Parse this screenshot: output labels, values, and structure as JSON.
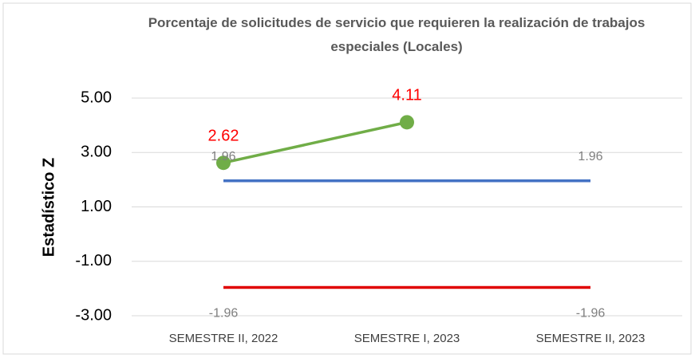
{
  "chart_data": {
    "type": "line",
    "title": "Porcentaje de solicitudes de servicio que requieren la realización de trabajos especiales (Locales)",
    "ylabel": "Estadístico Z",
    "categories": [
      "SEMESTRE II, 2022",
      "SEMESTRE I, 2023",
      "SEMESTRE II, 2023"
    ],
    "series": [
      {
        "name": "Estadístico Z",
        "color": "#70ad47",
        "values": [
          2.62,
          4.11,
          null
        ],
        "value_labels": [
          "2.62",
          "4.11",
          null
        ],
        "markers": true,
        "label_color": "#ff0000",
        "label_position": "above"
      },
      {
        "name": "1.96",
        "color": "#4472c4",
        "values": [
          1.96,
          1.96,
          1.96
        ],
        "value_labels": [
          "1.96",
          null,
          "1.96"
        ],
        "markers": false,
        "label_color": "#7f7f7f",
        "label_position": "above"
      },
      {
        "name": "-1.96",
        "color": "#e00000",
        "values": [
          -1.96,
          -1.96,
          -1.96
        ],
        "value_labels": [
          "-1.96",
          null,
          "-1.96"
        ],
        "markers": false,
        "label_color": "#7f7f7f",
        "label_position": "below"
      }
    ],
    "ylim": [
      -3,
      5
    ],
    "yticks": [
      {
        "value": -3,
        "label": "-3.00"
      },
      {
        "value": -1,
        "label": "-1.00"
      },
      {
        "value": 1,
        "label": "1.00"
      },
      {
        "value": 3,
        "label": "3.00"
      },
      {
        "value": 5,
        "label": "5.00"
      }
    ],
    "grid": true
  }
}
